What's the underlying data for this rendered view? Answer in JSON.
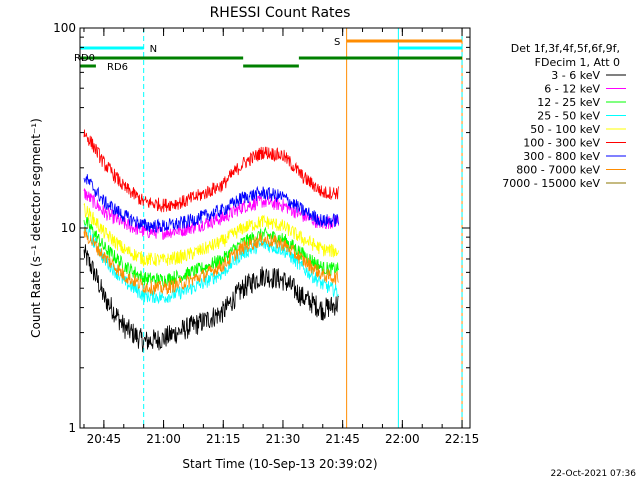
{
  "chart_data": {
    "type": "line",
    "title": "RHESSI Count Rates",
    "xlabel": "Start Time (10-Sep-13 20:39:02)",
    "ylabel": "Count Rate (s⁻¹ detector segment⁻¹)",
    "y_scale": "log",
    "ylim": [
      1,
      100
    ],
    "xlim": [
      "20:39",
      "22:17"
    ],
    "x_ticks": [
      "20:45",
      "21:00",
      "21:15",
      "21:30",
      "21:45",
      "22:00",
      "22:15"
    ],
    "y_ticks": [
      "1",
      "10",
      "100"
    ],
    "legend_header": [
      "Det 1f,3f,4f,5f,6f,9f,",
      "FDecim 1, Att 0"
    ],
    "legend_position": "right",
    "series": [
      {
        "name": "3 - 6 keV",
        "color": "#000000",
        "x": [
          "20:40",
          "20:45",
          "20:50",
          "20:55",
          "21:00",
          "21:05",
          "21:10",
          "21:15",
          "21:20",
          "21:25",
          "21:30",
          "21:35",
          "21:40",
          "21:44"
        ],
        "values": [
          7.5,
          4.5,
          3.2,
          2.7,
          2.8,
          3.1,
          3.4,
          3.8,
          5.0,
          5.8,
          5.5,
          4.5,
          3.9,
          4.2
        ]
      },
      {
        "name": "6 - 12 keV",
        "color": "#ff00ff",
        "x": [
          "20:40",
          "20:45",
          "20:50",
          "20:55",
          "21:00",
          "21:05",
          "21:10",
          "21:15",
          "21:20",
          "21:25",
          "21:30",
          "21:35",
          "21:40",
          "21:44"
        ],
        "values": [
          15,
          12,
          10.5,
          9.6,
          9.5,
          9.8,
          10.5,
          11.2,
          12.8,
          13.6,
          13.0,
          11.5,
          10.5,
          11
        ]
      },
      {
        "name": "12 - 25 keV",
        "color": "#00ff00",
        "x": [
          "20:40",
          "20:45",
          "20:50",
          "20:55",
          "21:00",
          "21:05",
          "21:10",
          "21:15",
          "21:20",
          "21:25",
          "21:30",
          "21:35",
          "21:40",
          "21:44"
        ],
        "values": [
          11,
          8,
          6.5,
          5.6,
          5.5,
          5.8,
          6.3,
          7.0,
          8.5,
          9.3,
          8.8,
          7.4,
          6.3,
          6.2
        ]
      },
      {
        "name": "25 - 50 keV",
        "color": "#00ffff",
        "x": [
          "20:40",
          "20:45",
          "20:50",
          "20:55",
          "21:00",
          "21:05",
          "21:10",
          "21:15",
          "21:20",
          "21:25",
          "21:30",
          "21:35",
          "21:40",
          "21:44"
        ],
        "values": [
          10,
          7,
          5.4,
          4.6,
          4.5,
          4.8,
          5.3,
          6.0,
          7.5,
          8.3,
          7.8,
          6.3,
          5.2,
          4.8
        ]
      },
      {
        "name": "50 - 100 keV",
        "color": "#ffff00",
        "x": [
          "20:40",
          "20:45",
          "20:50",
          "20:55",
          "21:00",
          "21:05",
          "21:10",
          "21:15",
          "21:20",
          "21:25",
          "21:30",
          "21:35",
          "21:40",
          "21:44"
        ],
        "values": [
          12.5,
          9.5,
          7.8,
          7.0,
          6.9,
          7.2,
          7.8,
          8.6,
          10.0,
          10.8,
          10.2,
          8.8,
          7.8,
          7.6
        ]
      },
      {
        "name": "100 - 300 keV",
        "color": "#ff0000",
        "x": [
          "20:40",
          "20:45",
          "20:50",
          "20:55",
          "21:00",
          "21:05",
          "21:10",
          "21:15",
          "21:20",
          "21:25",
          "21:30",
          "21:35",
          "21:40",
          "21:44"
        ],
        "values": [
          30,
          21,
          16,
          13.5,
          13,
          13.5,
          14.8,
          16.5,
          21,
          24,
          23,
          18,
          15,
          15
        ]
      },
      {
        "name": "300 - 800 keV",
        "color": "#0000ff",
        "x": [
          "20:40",
          "20:45",
          "20:50",
          "20:55",
          "21:00",
          "21:05",
          "21:10",
          "21:15",
          "21:20",
          "21:25",
          "21:30",
          "21:35",
          "21:40",
          "21:44"
        ],
        "values": [
          18,
          13.5,
          11.5,
          10.3,
          10.2,
          10.6,
          11.4,
          12.3,
          14.2,
          15,
          14.3,
          12.2,
          10.8,
          11
        ]
      },
      {
        "name": "800 - 7000 keV",
        "color": "#ff8c00",
        "x": [
          "20:40",
          "20:45",
          "20:50",
          "20:55",
          "21:00",
          "21:05",
          "21:10",
          "21:15",
          "21:20",
          "21:25",
          "21:30",
          "21:35",
          "21:40",
          "21:44"
        ],
        "values": [
          9.5,
          7.2,
          5.8,
          5.1,
          5.0,
          5.3,
          5.8,
          6.5,
          8.0,
          8.8,
          8.3,
          6.9,
          5.8,
          5.6
        ]
      },
      {
        "name": "7000 - 15000 keV",
        "color": "#8b7500",
        "x": [],
        "values": []
      }
    ],
    "state_bars": [
      {
        "label": "N",
        "color": "#00ffff",
        "segments": [
          [
            "20:39",
            "20:55"
          ],
          [
            "21:59",
            "22:15"
          ]
        ]
      },
      {
        "label": "S",
        "color": "#ff8c00",
        "segments": [
          [
            "21:46",
            "22:15"
          ]
        ]
      },
      {
        "label": "RD0",
        "color": "#008000",
        "segments": [
          [
            "20:39",
            "21:20"
          ],
          [
            "21:20",
            "21:34"
          ],
          [
            "21:34",
            "22:15"
          ]
        ]
      },
      {
        "label": "RD6",
        "color": "#008000",
        "segments": [
          [
            "20:39",
            "20:43"
          ]
        ]
      }
    ],
    "vertical_lines": [
      {
        "x": "20:39",
        "color": "#00ffff",
        "style": "solid"
      },
      {
        "x": "20:55",
        "color": "#00ffff",
        "style": "dashed"
      },
      {
        "x": "21:46",
        "color": "#ff8c00",
        "style": "solid"
      },
      {
        "x": "21:59",
        "color": "#00ffff",
        "style": "solid"
      },
      {
        "x": "22:15",
        "color": "#ff8c00",
        "style": "solid"
      },
      {
        "x": "22:15",
        "color": "#00ffff",
        "style": "dashed"
      }
    ]
  },
  "footer_timestamp": "22-Oct-2021 07:36"
}
